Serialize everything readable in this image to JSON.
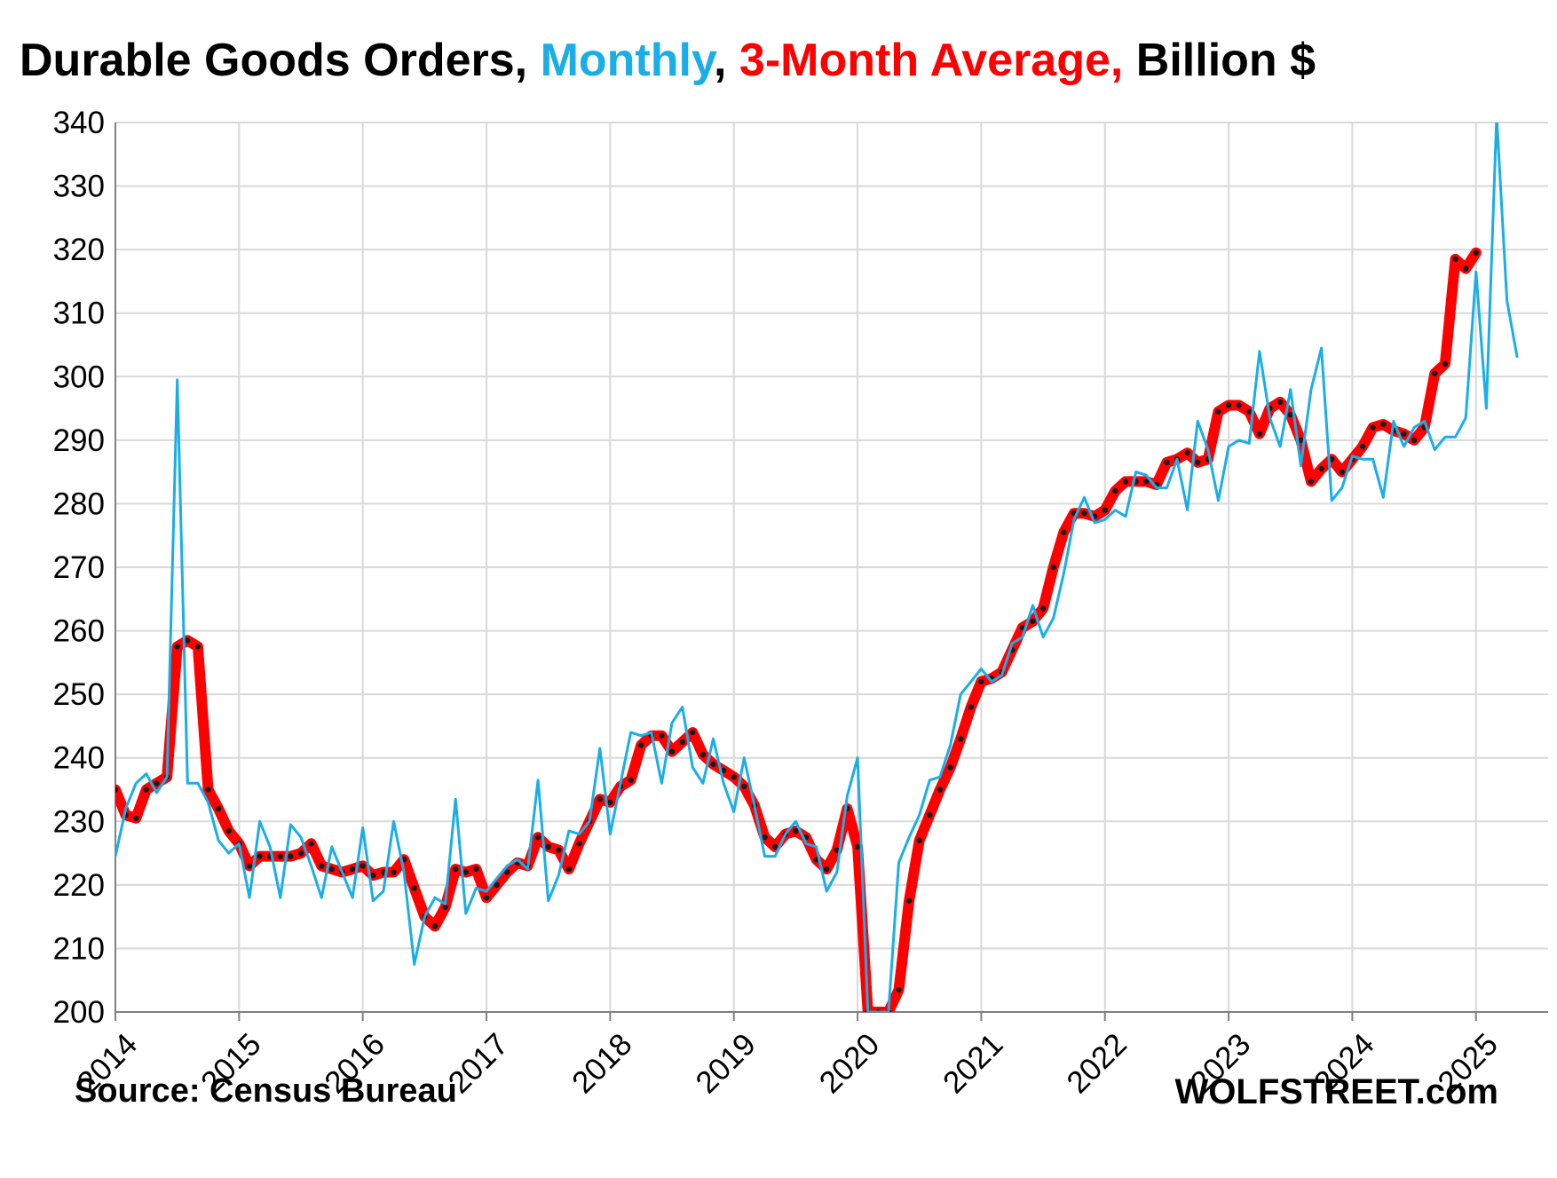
{
  "title_parts": {
    "part1": "Durable Goods Orders, ",
    "part2": "Monthly",
    "part3": ", ",
    "part4": "3-Month Average,",
    "part5": " Billion $"
  },
  "source": "Source: Census Bureau",
  "credit": "WOLFSTREET.com",
  "colors": {
    "monthly": "#1aaee8",
    "average": "#ff0000",
    "average_markers": "#1a1a1a",
    "grid": "#d9d9d9"
  },
  "chart_data": {
    "type": "line",
    "title": "Durable Goods Orders, Monthly, 3-Month Average, Billion $",
    "ylim": [
      200,
      340
    ],
    "xlim": [
      2014.0,
      2025.583
    ],
    "yticks": [
      200,
      210,
      220,
      230,
      240,
      250,
      260,
      270,
      280,
      290,
      300,
      310,
      320,
      330,
      340
    ],
    "xticks": [
      "2014",
      "2015",
      "2016",
      "2017",
      "2018",
      "2019",
      "2020",
      "2021",
      "2022",
      "2023",
      "2024",
      "2025"
    ],
    "grid": true,
    "legend": "none (series named in title)",
    "start_month": "2014-01",
    "series": [
      {
        "name": "Monthly",
        "values": [
          224.5,
          232.0,
          236.0,
          237.5,
          234.5,
          237.0,
          299.5,
          236.0,
          236.0,
          233.0,
          227.0,
          225.0,
          226.5,
          218.0,
          230.0,
          226.0,
          218.0,
          229.5,
          227.5,
          223.0,
          218.0,
          226.0,
          222.0,
          218.0,
          229.0,
          217.5,
          219.0,
          230.0,
          222.0,
          207.5,
          215.0,
          218.0,
          217.0,
          233.5,
          215.5,
          219.5,
          219.0,
          221.0,
          223.0,
          224.0,
          222.5,
          236.5,
          217.5,
          221.5,
          228.5,
          228.0,
          230.0,
          241.5,
          228.0,
          236.0,
          244.0,
          243.5,
          244.0,
          236.0,
          245.5,
          248.0,
          238.5,
          236.0,
          243.0,
          236.0,
          231.5,
          240.0,
          232.5,
          224.5,
          224.5,
          228.0,
          230.0,
          226.5,
          226.0,
          219.0,
          222.0,
          234.0,
          240.0,
          200.0,
          200.0,
          200.0,
          223.5,
          227.5,
          231.0,
          236.5,
          237.0,
          242.0,
          250.0,
          252.0,
          254.0,
          252.0,
          253.0,
          258.0,
          259.0,
          264.0,
          259.0,
          262.0,
          269.0,
          277.5,
          281.0,
          277.0,
          277.5,
          279.0,
          278.0,
          285.0,
          284.5,
          282.5,
          282.5,
          287.0,
          279.0,
          293.0,
          288.5,
          280.5,
          289.0,
          290.0,
          289.5,
          304.0,
          293.5,
          289.0,
          298.0,
          286.0,
          298.0,
          304.5,
          280.5,
          282.5,
          287.5,
          287.0,
          287.0,
          281.0,
          293.0,
          289.0,
          292.0,
          293.0,
          288.5,
          290.5,
          290.5,
          293.5,
          316.5,
          295.0,
          341.0,
          312.0,
          303.0
        ]
      },
      {
        "name": "3-Month Average",
        "values": [
          235.0,
          231.0,
          230.5,
          235.0,
          236.0,
          237.0,
          257.5,
          258.5,
          257.5,
          235.0,
          232.0,
          228.5,
          226.5,
          223.0,
          224.5,
          224.5,
          224.5,
          224.5,
          225.0,
          226.5,
          223.0,
          222.5,
          222.0,
          222.5,
          223.0,
          221.5,
          222.0,
          222.0,
          224.0,
          219.5,
          215.0,
          213.5,
          216.5,
          222.5,
          222.0,
          222.5,
          218.0,
          220.0,
          222.0,
          223.5,
          223.0,
          227.5,
          226.0,
          225.5,
          222.5,
          226.5,
          230.0,
          233.5,
          233.0,
          235.5,
          236.5,
          242.0,
          243.5,
          243.5,
          241.0,
          242.5,
          244.0,
          240.5,
          239.0,
          238.0,
          237.0,
          235.5,
          232.5,
          227.5,
          226.0,
          228.0,
          228.5,
          227.5,
          224.0,
          222.5,
          225.5,
          232.0,
          226.0,
          200.0,
          200.0,
          200.0,
          203.5,
          217.5,
          227.0,
          231.0,
          235.0,
          238.5,
          243.0,
          248.0,
          252.0,
          252.5,
          253.5,
          257.0,
          260.5,
          261.5,
          263.5,
          270.0,
          275.5,
          278.5,
          278.5,
          278.0,
          279.0,
          282.0,
          283.5,
          283.5,
          283.5,
          283.0,
          286.5,
          287.0,
          288.0,
          286.5,
          287.0,
          294.5,
          295.5,
          295.5,
          294.5,
          291.0,
          295.0,
          296.0,
          294.0,
          290.0,
          283.5,
          285.5,
          287.0,
          285.0,
          287.0,
          289.0,
          292.0,
          292.5,
          291.5,
          291.0,
          290.0,
          292.0,
          300.5,
          302.0,
          318.5,
          317.0,
          319.5
        ]
      }
    ]
  }
}
